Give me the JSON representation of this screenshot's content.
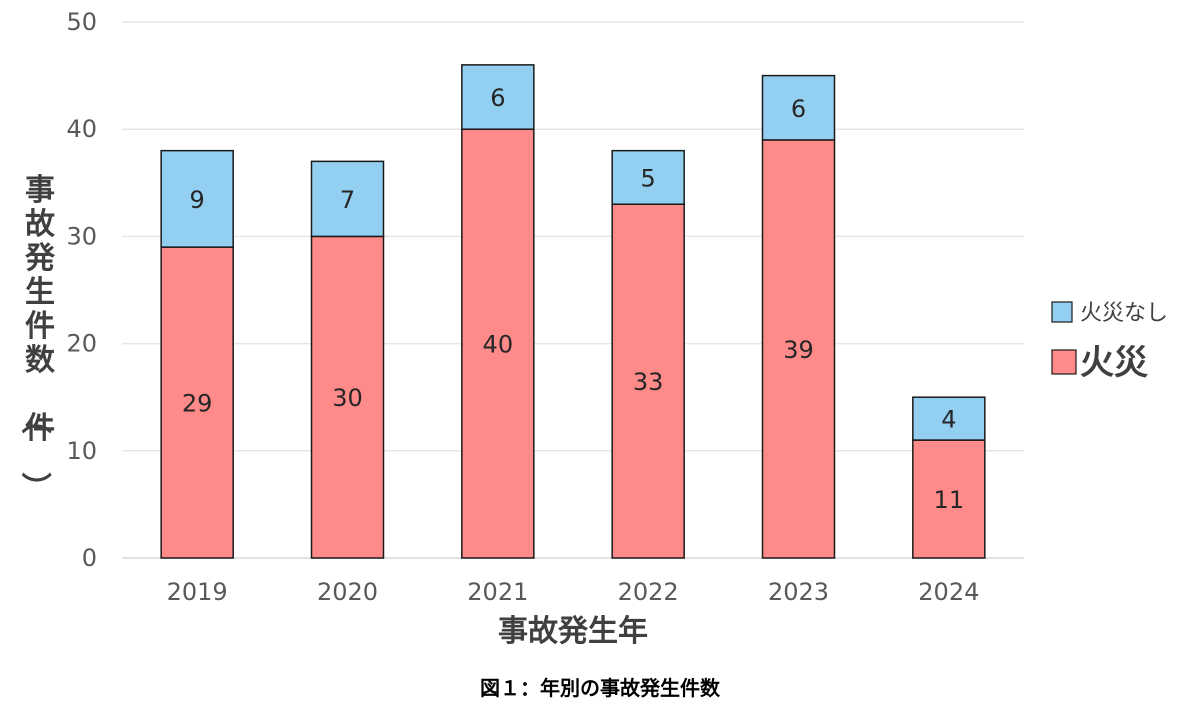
{
  "chart_data": {
    "type": "bar",
    "stacked": true,
    "categories": [
      "2019",
      "2020",
      "2021",
      "2022",
      "2023",
      "2024"
    ],
    "series": [
      {
        "name": "火災",
        "values": [
          29,
          30,
          40,
          33,
          39,
          11
        ],
        "color": "#ff8a8a"
      },
      {
        "name": "火災なし",
        "values": [
          9,
          7,
          6,
          5,
          6,
          4
        ],
        "color": "#92cff0"
      }
    ],
    "xlabel": "事故発生年",
    "ylabel": "事故発生件数（件）",
    "ylim": [
      0,
      50
    ],
    "yticks": [
      0,
      10,
      20,
      30,
      40,
      50
    ],
    "grid": true,
    "legend_position": "right"
  },
  "caption": "図１：年別の事故発生件数"
}
